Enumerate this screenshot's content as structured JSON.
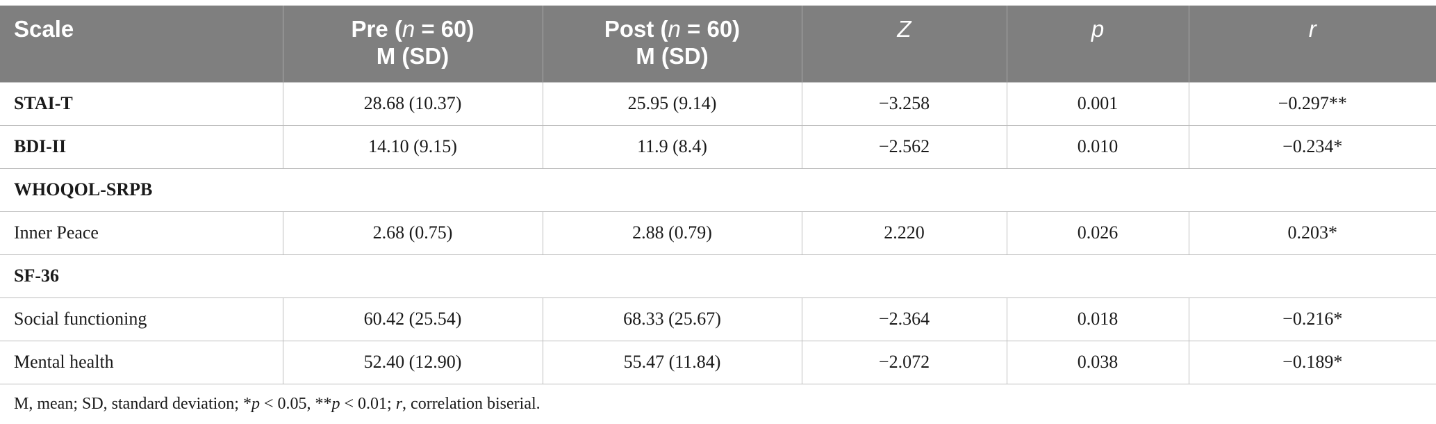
{
  "header": {
    "scale": "Scale",
    "pre_a": "Pre (",
    "pre_n": "n",
    "pre_b": " = 60)",
    "pre_sub": "M (SD)",
    "post_a": "Post (",
    "post_n": "n",
    "post_b": " = 60)",
    "post_sub": "M (SD)",
    "z": "Z",
    "p": "p",
    "r": "r"
  },
  "rows": [
    {
      "label": "STAI-T",
      "pre": "28.68 (10.37)",
      "post": "25.95 (9.14)",
      "z": "−3.258",
      "p": "0.001",
      "r": "−0.297**"
    },
    {
      "label": "BDI-II",
      "pre": "14.10 (9.15)",
      "post": "11.9 (8.4)",
      "z": "−2.562",
      "p": "0.010",
      "r": "−0.234*"
    },
    {
      "group": "WHOQOL-SRPB"
    },
    {
      "label": "Inner Peace",
      "pre": "2.68 (0.75)",
      "post": "2.88 (0.79)",
      "z": "2.220",
      "p": "0.026",
      "r": "0.203*"
    },
    {
      "group": "SF-36"
    },
    {
      "label": "Social functioning",
      "pre": "60.42 (25.54)",
      "post": "68.33 (25.67)",
      "z": "−2.364",
      "p": "0.018",
      "r": "−0.216*"
    },
    {
      "label": "Mental health",
      "pre": "52.40 (12.90)",
      "post": "55.47 (11.84)",
      "z": "−2.072",
      "p": "0.038",
      "r": "−0.189*"
    }
  ],
  "footnote": {
    "part1": "M, mean; SD, standard deviation; *",
    "p1": "p",
    "part2": " < 0.05, **",
    "p2": "p",
    "part3": " < 0.01; ",
    "r": "r",
    "part4": ", correlation biserial."
  }
}
